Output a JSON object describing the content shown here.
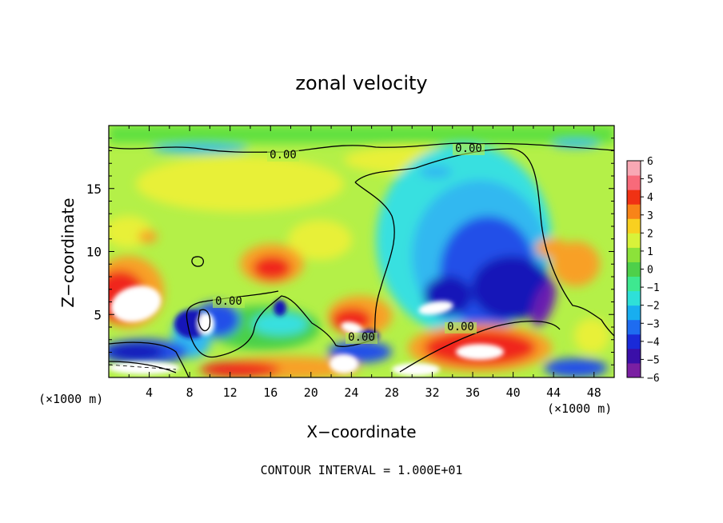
{
  "chart_data": {
    "type": "heatmap",
    "title": "zonal velocity",
    "xlabel": "X−coordinate",
    "ylabel": "Z−coordinate",
    "x_unit_left": "(×1000 m)",
    "x_unit_right": "(×1000 m)",
    "xlim": [
      0,
      50
    ],
    "ylim": [
      0,
      20
    ],
    "x_ticks": [
      4,
      8,
      12,
      16,
      20,
      24,
      28,
      32,
      36,
      40,
      44,
      48
    ],
    "x_tick_labels": [
      "4",
      "8",
      "12",
      "16",
      "20",
      "24",
      "28",
      "32",
      "36",
      "40",
      "44",
      "48"
    ],
    "y_ticks": [
      5,
      10,
      15
    ],
    "y_tick_labels": [
      "5",
      "10",
      "15"
    ],
    "footer": "CONTOUR INTERVAL = 1.000E+01",
    "contour_labels": [
      "0.00",
      "0.00",
      "0.00",
      "0.00",
      "0.00"
    ],
    "colorbar": {
      "min": -6,
      "max": 6,
      "tick_labels": [
        "6",
        "5",
        "4",
        "3",
        "2",
        "1",
        "0",
        "−1",
        "−2",
        "−3",
        "−4",
        "−5",
        "−6"
      ],
      "colors": [
        "#7a1fa2",
        "#3a0fa8",
        "#1a2ad8",
        "#1e6cf0",
        "#18aef0",
        "#2ee0d8",
        "#3ee890",
        "#4ed04a",
        "#8ce23a",
        "#d8f23a",
        "#f8d020",
        "#f88418",
        "#f03214",
        "#f86a7a",
        "#f8a8b4"
      ]
    },
    "field_colors": {
      "background": "#b4f048",
      "band_top": "#5ee040",
      "yellow": "#e8f038",
      "orange": "#f8a028",
      "red": "#f0281c",
      "pink": "#f8909c",
      "white": "#ffffff",
      "cyan": "#38e0e0",
      "lightblue": "#30b8f0",
      "blue": "#2050e8",
      "darkblue": "#1818b8",
      "purple": "#6a1ab0",
      "green": "#48d048"
    }
  }
}
